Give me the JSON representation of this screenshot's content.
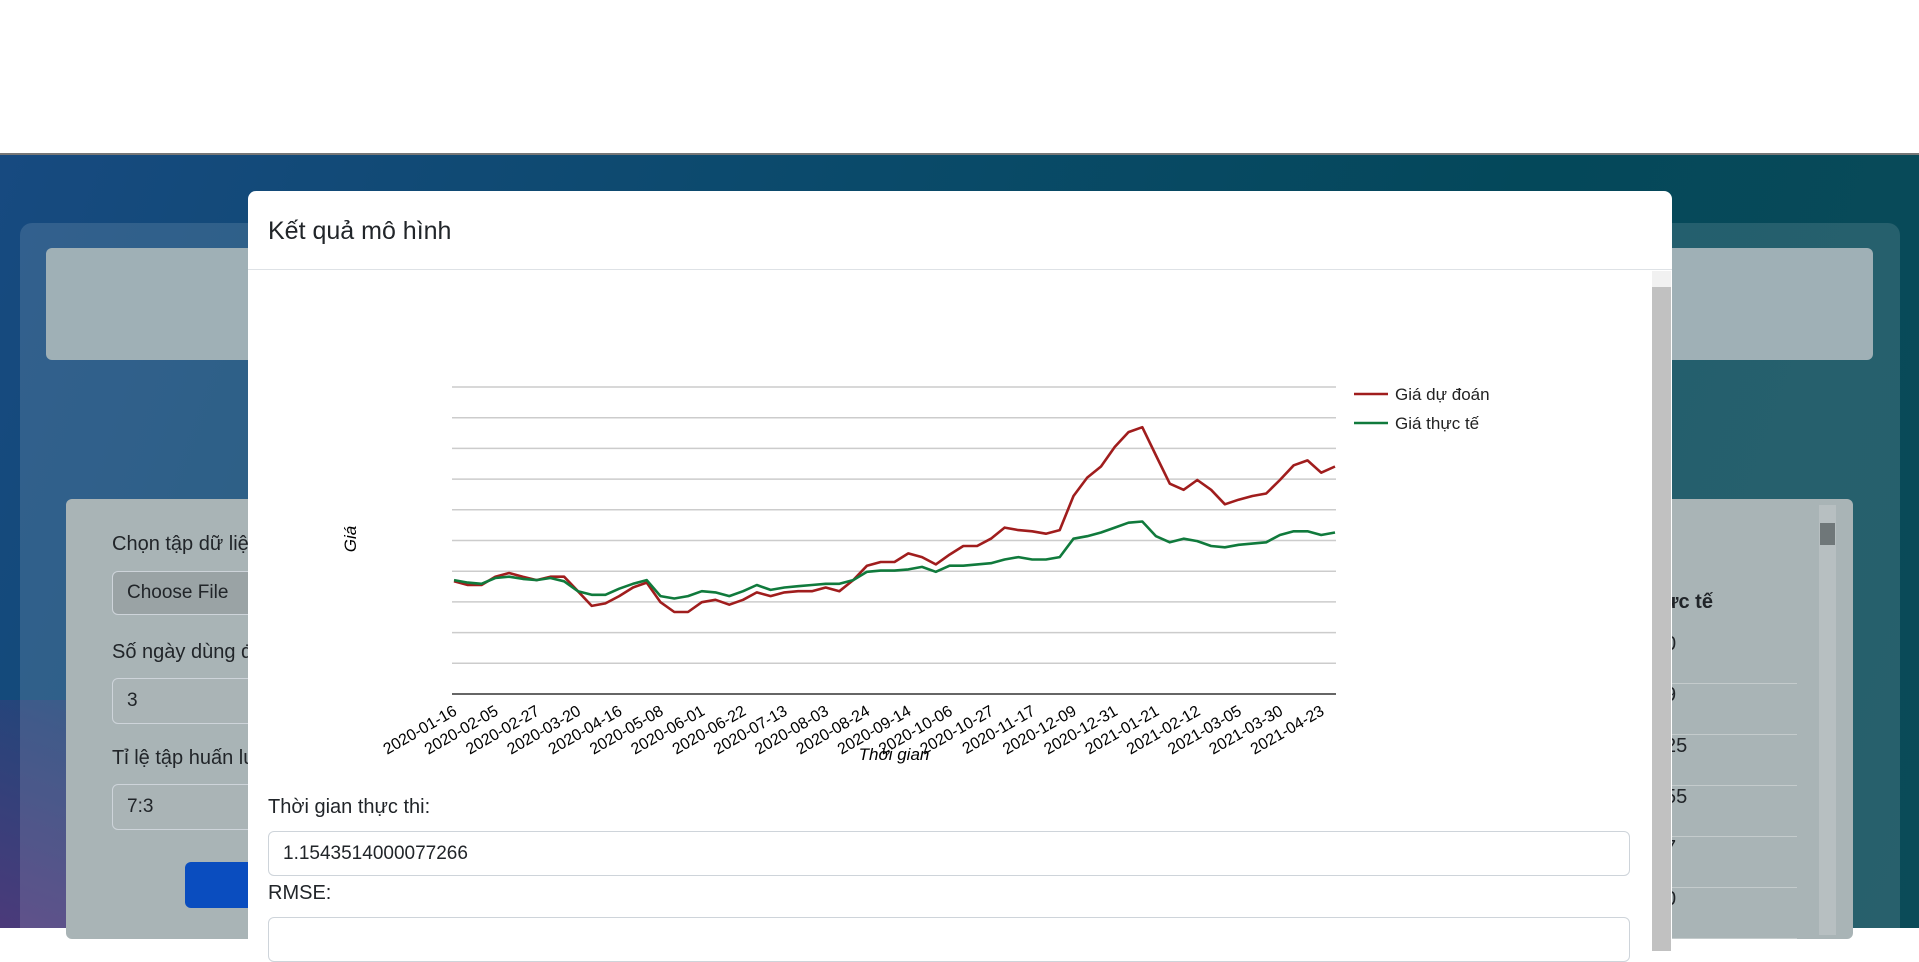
{
  "background": {
    "form": {
      "dataset_label": "Chọn tập dữ liệ",
      "file_button": "Choose File",
      "days_label": "Số ngày dùng đ",
      "days_value": "3",
      "ratio_label": "Tỉ lệ tập huấn lu",
      "ratio_value": "7:3"
    },
    "table": {
      "header": "ực tế",
      "cells": [
        "0",
        "9",
        "25",
        "55",
        "7",
        "0"
      ]
    }
  },
  "modal": {
    "title": "Kết quả mô hình",
    "exec_time_label": "Thời gian thực thi:",
    "exec_time_value": "1.1543514000077266",
    "rmse_label": "RMSE:"
  },
  "chart_data": {
    "type": "line",
    "x_label": "Thời gian",
    "y_label": "Giá",
    "categories": [
      "2020-01-16",
      null,
      null,
      "2020-02-05",
      null,
      null,
      "2020-02-27",
      null,
      null,
      "2020-03-20",
      null,
      null,
      "2020-04-16",
      null,
      null,
      "2020-05-08",
      null,
      null,
      "2020-06-01",
      null,
      null,
      "2020-06-22",
      null,
      null,
      "2020-07-13",
      null,
      null,
      "2020-08-03",
      null,
      null,
      "2020-08-24",
      null,
      null,
      "2020-09-14",
      null,
      null,
      "2020-10-06",
      null,
      null,
      "2020-10-27",
      null,
      null,
      "2020-11-17",
      null,
      null,
      "2020-12-09",
      null,
      null,
      "2020-12-31",
      null,
      null,
      "2021-01-21",
      null,
      null,
      "2021-02-12",
      null,
      null,
      "2021-03-05",
      null,
      null,
      "2021-03-30",
      null,
      null,
      "2021-04-23",
      null
    ],
    "series": [
      {
        "name": "Giá dự đoán",
        "color": "#a01d1d",
        "values": [
          36.7,
          35.5,
          35.5,
          38.2,
          39.4,
          38.2,
          37.1,
          38.2,
          38.2,
          33.5,
          28.7,
          29.5,
          31.9,
          34.7,
          36.3,
          29.9,
          26.7,
          26.7,
          29.9,
          30.7,
          29.1,
          30.7,
          33.1,
          31.9,
          33.1,
          33.5,
          33.5,
          34.7,
          33.5,
          37.1,
          41.8,
          43.0,
          43.0,
          45.8,
          44.6,
          42.2,
          45.4,
          48.2,
          48.2,
          50.6,
          54.2,
          53.4,
          53.0,
          52.2,
          53.4,
          64.5,
          70.5,
          74.1,
          80.5,
          85.3,
          86.9,
          77.7,
          68.5,
          66.5,
          69.7,
          66.5,
          61.8,
          63.3,
          64.5,
          65.3,
          69.7,
          74.5,
          76.1,
          72.1,
          74.1
        ]
      },
      {
        "name": "Giá thực tế",
        "color": "#107a3c",
        "values": [
          37.1,
          36.3,
          35.9,
          37.8,
          38.2,
          37.5,
          37.1,
          37.8,
          36.7,
          33.5,
          32.3,
          32.3,
          34.3,
          35.9,
          37.1,
          31.9,
          31.1,
          31.9,
          33.5,
          33.1,
          31.9,
          33.5,
          35.5,
          33.9,
          34.7,
          35.1,
          35.5,
          35.9,
          35.9,
          37.1,
          39.8,
          40.2,
          40.2,
          40.6,
          41.4,
          39.8,
          41.8,
          41.8,
          42.2,
          42.6,
          43.8,
          44.6,
          43.8,
          43.8,
          44.6,
          50.6,
          51.4,
          52.6,
          54.2,
          55.8,
          56.2,
          51.4,
          49.4,
          50.6,
          49.8,
          48.2,
          47.8,
          48.6,
          49.0,
          49.4,
          51.8,
          53.0,
          53.0,
          51.8,
          52.6
        ]
      }
    ],
    "ylim": [
      0,
      100
    ],
    "yticks": [
      0,
      10,
      20,
      30,
      40,
      50,
      60,
      70,
      80,
      90,
      100
    ],
    "grid": true,
    "legend": "right"
  }
}
